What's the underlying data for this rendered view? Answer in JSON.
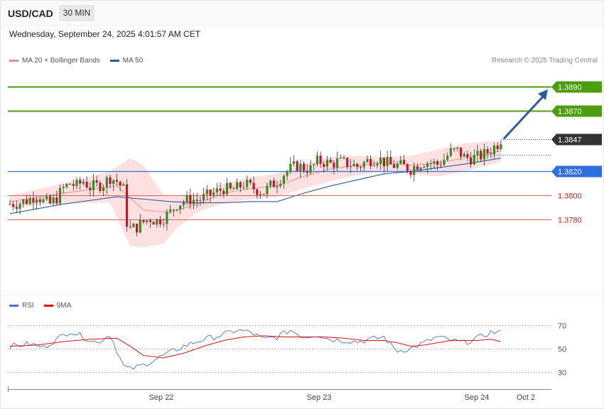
{
  "header": {
    "symbol": "USD/CAD",
    "timeframe": "30 MIN",
    "datetime": "Wednesday, September 24, 2025 4:01:57 AM CET"
  },
  "legend": {
    "ma20": {
      "label": "MA 20 + Bollinger Bands",
      "color": "#f28b82"
    },
    "ma50": {
      "label": "MA 50",
      "color": "#2f5b9f"
    }
  },
  "credit": "Research © 2025 Trading Central",
  "rsi_legend": {
    "rsi": {
      "label": "RSI",
      "color": "#4a72d8"
    },
    "ma9": {
      "label": "9MA",
      "color": "#e01010"
    }
  },
  "colors": {
    "up": "#3a8a1e",
    "down": "#c0182c",
    "target": "#4c9d0f",
    "pivot": "#2f6fe0",
    "support": "#e06060",
    "current": "#333333",
    "arrow": "#2f5b9f"
  },
  "chart_data": [
    {
      "type": "candlestick",
      "title": "USD/CAD",
      "ylim": [
        1.3709,
        1.3915
      ],
      "x_ticks": [
        "Sep 22",
        "Sep 23",
        "Sep 24",
        "Oct 2"
      ],
      "levels": [
        {
          "label": "1.3890",
          "value": 1.389,
          "kind": "target"
        },
        {
          "label": "1.3870",
          "value": 1.387,
          "kind": "target"
        },
        {
          "label": "1.3847",
          "value": 1.3847,
          "kind": "current"
        },
        {
          "label": "1.3820",
          "value": 1.382,
          "kind": "pivot"
        },
        {
          "label": "1.3800",
          "value": 1.38,
          "kind": "support"
        },
        {
          "label": "1.3780",
          "value": 1.378,
          "kind": "support"
        }
      ],
      "projection_target": 1.3888,
      "close_path": [
        [
          0,
          1.3793
        ],
        [
          3,
          1.3794
        ],
        [
          6,
          1.3797
        ],
        [
          8,
          1.3801
        ],
        [
          10,
          1.3795
        ],
        [
          12,
          1.3793
        ],
        [
          14,
          1.3798
        ],
        [
          16,
          1.3806
        ],
        [
          18,
          1.381
        ],
        [
          20,
          1.3808
        ],
        [
          22,
          1.3812
        ],
        [
          24,
          1.3807
        ],
        [
          26,
          1.3808
        ],
        [
          28,
          1.381
        ],
        [
          30,
          1.3815
        ],
        [
          32,
          1.3812
        ],
        [
          34,
          1.3805
        ],
        [
          35,
          1.3778
        ],
        [
          36,
          1.3772
        ],
        [
          38,
          1.3774
        ],
        [
          40,
          1.3778
        ],
        [
          42,
          1.3781
        ],
        [
          44,
          1.3779
        ],
        [
          46,
          1.3782
        ],
        [
          48,
          1.3786
        ],
        [
          50,
          1.3793
        ],
        [
          52,
          1.3795
        ],
        [
          54,
          1.3797
        ],
        [
          56,
          1.3796
        ],
        [
          58,
          1.3798
        ],
        [
          60,
          1.3801
        ],
        [
          62,
          1.3803
        ],
        [
          64,
          1.3806
        ],
        [
          66,
          1.3804
        ],
        [
          68,
          1.3806
        ],
        [
          70,
          1.381
        ],
        [
          72,
          1.3807
        ],
        [
          74,
          1.3805
        ],
        [
          76,
          1.3803
        ],
        [
          78,
          1.3808
        ],
        [
          80,
          1.3812
        ],
        [
          82,
          1.3818
        ],
        [
          84,
          1.3822
        ],
        [
          86,
          1.3825
        ],
        [
          88,
          1.3823
        ],
        [
          90,
          1.3822
        ],
        [
          92,
          1.3828
        ],
        [
          94,
          1.3828
        ],
        [
          96,
          1.3826
        ],
        [
          98,
          1.3828
        ],
        [
          100,
          1.3827
        ],
        [
          102,
          1.3826
        ],
        [
          104,
          1.3824
        ],
        [
          106,
          1.3827
        ],
        [
          108,
          1.383
        ],
        [
          110,
          1.3831
        ],
        [
          112,
          1.3828
        ],
        [
          114,
          1.3825
        ],
        [
          116,
          1.3825
        ],
        [
          118,
          1.3824
        ],
        [
          120,
          1.3822
        ],
        [
          122,
          1.3826
        ],
        [
          124,
          1.3828
        ],
        [
          126,
          1.3827
        ],
        [
          128,
          1.3826
        ],
        [
          130,
          1.383
        ],
        [
          132,
          1.3836
        ],
        [
          134,
          1.3837
        ],
        [
          136,
          1.3832
        ],
        [
          138,
          1.3831
        ],
        [
          140,
          1.3832
        ],
        [
          142,
          1.3834
        ],
        [
          144,
          1.3838
        ],
        [
          146,
          1.3843
        ],
        [
          147,
          1.3847
        ]
      ],
      "ma20": [
        [
          0,
          1.3795
        ],
        [
          16,
          1.3802
        ],
        [
          32,
          1.3808
        ],
        [
          40,
          1.3788
        ],
        [
          48,
          1.3786
        ],
        [
          56,
          1.3793
        ],
        [
          64,
          1.3802
        ],
        [
          72,
          1.3806
        ],
        [
          80,
          1.3808
        ],
        [
          88,
          1.3816
        ],
        [
          96,
          1.3822
        ],
        [
          104,
          1.3825
        ],
        [
          112,
          1.3827
        ],
        [
          120,
          1.3825
        ],
        [
          128,
          1.3827
        ],
        [
          136,
          1.3831
        ],
        [
          147,
          1.3837
        ]
      ],
      "bollinger_upper": [
        [
          0,
          1.38
        ],
        [
          16,
          1.381
        ],
        [
          30,
          1.382
        ],
        [
          36,
          1.3831
        ],
        [
          40,
          1.3825
        ],
        [
          46,
          1.38
        ],
        [
          56,
          1.38
        ],
        [
          64,
          1.381
        ],
        [
          72,
          1.3815
        ],
        [
          80,
          1.3818
        ],
        [
          88,
          1.3826
        ],
        [
          96,
          1.3832
        ],
        [
          104,
          1.3833
        ],
        [
          112,
          1.3832
        ],
        [
          120,
          1.3833
        ],
        [
          128,
          1.3838
        ],
        [
          136,
          1.3843
        ],
        [
          147,
          1.3846
        ]
      ],
      "bollinger_lower": [
        [
          0,
          1.379
        ],
        [
          16,
          1.3794
        ],
        [
          30,
          1.3794
        ],
        [
          36,
          1.3758
        ],
        [
          40,
          1.3757
        ],
        [
          46,
          1.376
        ],
        [
          50,
          1.3773
        ],
        [
          56,
          1.3786
        ],
        [
          64,
          1.3794
        ],
        [
          72,
          1.3797
        ],
        [
          80,
          1.3799
        ],
        [
          88,
          1.3806
        ],
        [
          96,
          1.3812
        ],
        [
          104,
          1.3817
        ],
        [
          112,
          1.382
        ],
        [
          120,
          1.3818
        ],
        [
          128,
          1.3816
        ],
        [
          136,
          1.382
        ],
        [
          147,
          1.3828
        ]
      ],
      "ma50": [
        [
          0,
          1.3785
        ],
        [
          16,
          1.3793
        ],
        [
          32,
          1.3799
        ],
        [
          40,
          1.3797
        ],
        [
          48,
          1.3795
        ],
        [
          56,
          1.3794
        ],
        [
          64,
          1.3794
        ],
        [
          72,
          1.3795
        ],
        [
          80,
          1.3795
        ],
        [
          88,
          1.3802
        ],
        [
          96,
          1.3808
        ],
        [
          104,
          1.3813
        ],
        [
          112,
          1.3818
        ],
        [
          120,
          1.382
        ],
        [
          128,
          1.3823
        ],
        [
          136,
          1.3826
        ],
        [
          147,
          1.3831
        ]
      ]
    },
    {
      "type": "line",
      "title": "RSI",
      "ylim": [
        20,
        75
      ],
      "y_ticks": [
        70,
        50,
        30
      ],
      "series": [
        {
          "name": "RSI",
          "values": [
            [
              0,
              52
            ],
            [
              6,
              54
            ],
            [
              10,
              51
            ],
            [
              14,
              58
            ],
            [
              18,
              65
            ],
            [
              22,
              60
            ],
            [
              26,
              55
            ],
            [
              30,
              62
            ],
            [
              34,
              35
            ],
            [
              36,
              32
            ],
            [
              40,
              36
            ],
            [
              46,
              44
            ],
            [
              52,
              52
            ],
            [
              58,
              58
            ],
            [
              64,
              62
            ],
            [
              68,
              66
            ],
            [
              72,
              64
            ],
            [
              76,
              58
            ],
            [
              80,
              60
            ],
            [
              84,
              66
            ],
            [
              88,
              60
            ],
            [
              92,
              62
            ],
            [
              96,
              58
            ],
            [
              100,
              57
            ],
            [
              104,
              56
            ],
            [
              108,
              58
            ],
            [
              112,
              60
            ],
            [
              114,
              53
            ],
            [
              116,
              48
            ],
            [
              120,
              50
            ],
            [
              124,
              55
            ],
            [
              128,
              60
            ],
            [
              132,
              57
            ],
            [
              136,
              55
            ],
            [
              140,
              59
            ],
            [
              144,
              64
            ],
            [
              147,
              64
            ]
          ]
        },
        {
          "name": "9MA",
          "values": [
            [
              0,
              52
            ],
            [
              8,
              53
            ],
            [
              16,
              56
            ],
            [
              24,
              58
            ],
            [
              32,
              59
            ],
            [
              36,
              52
            ],
            [
              40,
              44
            ],
            [
              46,
              42
            ],
            [
              52,
              46
            ],
            [
              58,
              52
            ],
            [
              64,
              57
            ],
            [
              70,
              60
            ],
            [
              76,
              61
            ],
            [
              82,
              60
            ],
            [
              88,
              60
            ],
            [
              94,
              60
            ],
            [
              100,
              59
            ],
            [
              106,
              57
            ],
            [
              112,
              57
            ],
            [
              116,
              55
            ],
            [
              120,
              52
            ],
            [
              124,
              53
            ],
            [
              128,
              55
            ],
            [
              132,
              57
            ],
            [
              136,
              57
            ],
            [
              140,
              57
            ],
            [
              144,
              58
            ],
            [
              147,
              56
            ]
          ]
        }
      ]
    }
  ]
}
